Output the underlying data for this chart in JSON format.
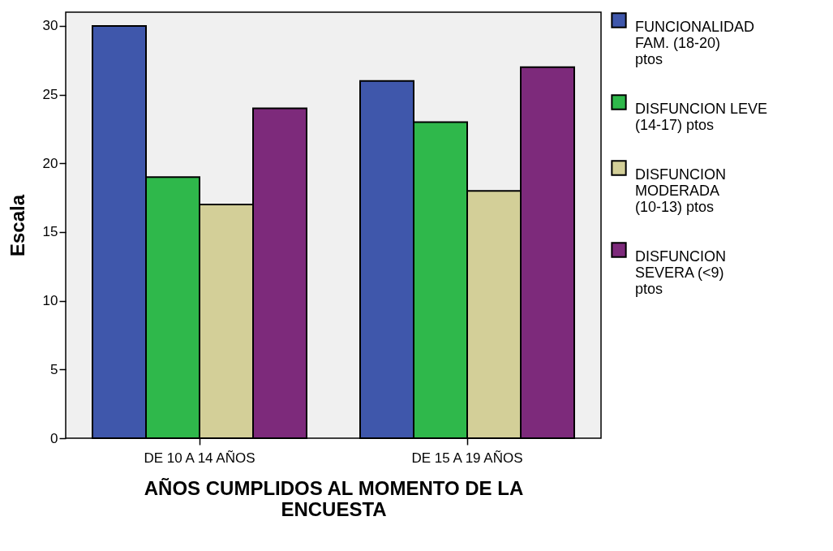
{
  "chart_data": {
    "type": "bar",
    "xlabel": "AÑOS CUMPLIDOS AL MOMENTO DE LA ENCUESTA",
    "ylabel": "Escala",
    "categories": [
      "DE 10 A 14 AÑOS",
      "DE 15 A 19 AÑOS"
    ],
    "series": [
      {
        "name": "FUNCIONALIDAD FAM. (18-20) ptos",
        "color": "#3f57ab",
        "values": [
          30,
          26
        ]
      },
      {
        "name": "DISFUNCION LEVE (14-17) ptos",
        "color": "#2fb84b",
        "values": [
          19,
          23
        ]
      },
      {
        "name": "DISFUNCION MODERADA (10-13) ptos",
        "color": "#d3cf98",
        "values": [
          17,
          18
        ]
      },
      {
        "name": "DISFUNCION SEVERA (<9) ptos",
        "color": "#7d2a7b",
        "values": [
          24,
          27
        ]
      }
    ],
    "ylim": [
      0,
      31
    ],
    "yticks": [
      0,
      5,
      10,
      15,
      20,
      25,
      30
    ],
    "grid": false,
    "legend": "right"
  }
}
